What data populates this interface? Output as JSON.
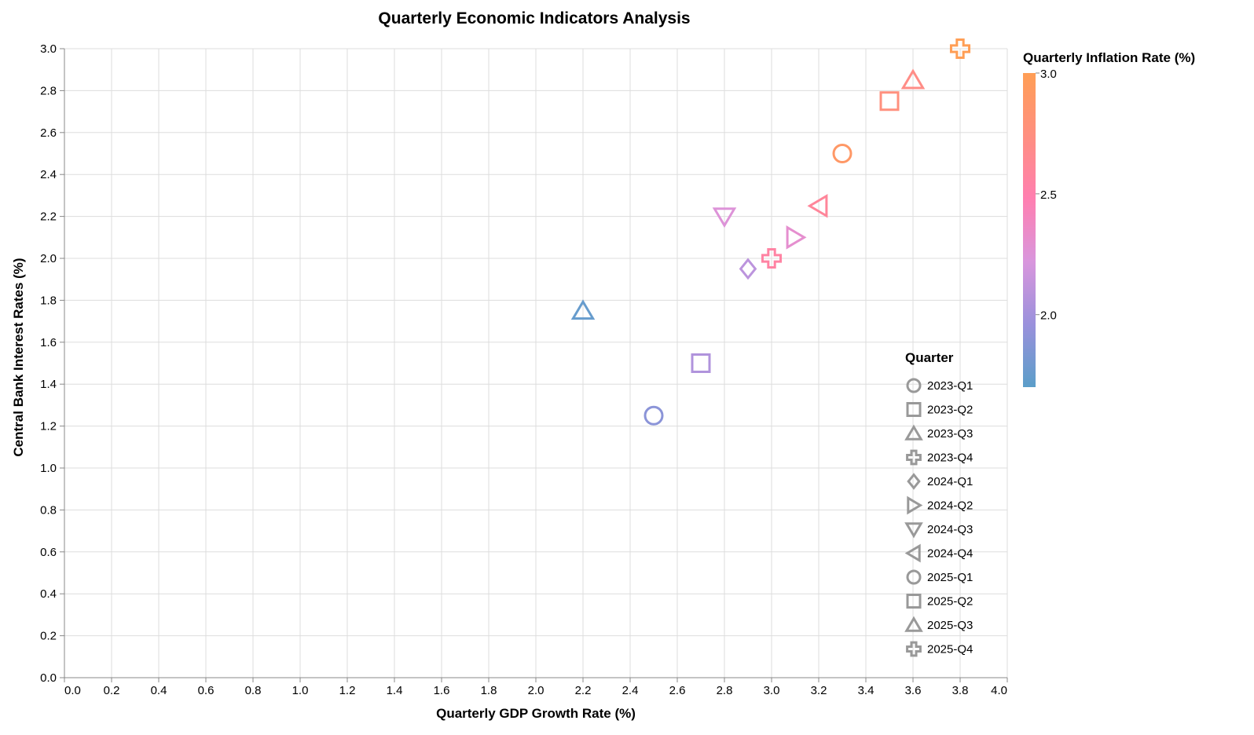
{
  "chart_data": {
    "type": "scatter",
    "title": "Quarterly Economic Indicators Analysis",
    "xlabel": "Quarterly GDP Growth Rate (%)",
    "ylabel": "Central Bank Interest Rates (%)",
    "xlim": [
      0,
      4
    ],
    "ylim": [
      0,
      3
    ],
    "x_ticks": [
      "0.0",
      "0.2",
      "0.4",
      "0.6",
      "0.8",
      "1.0",
      "1.2",
      "1.4",
      "1.6",
      "1.8",
      "2.0",
      "2.2",
      "2.4",
      "2.6",
      "2.8",
      "3.0",
      "3.2",
      "3.4",
      "3.6",
      "3.8",
      "4.0"
    ],
    "y_ticks": [
      "0.0",
      "0.2",
      "0.4",
      "0.6",
      "0.8",
      "1.0",
      "1.2",
      "1.4",
      "1.6",
      "1.8",
      "2.0",
      "2.2",
      "2.4",
      "2.6",
      "2.8",
      "3.0"
    ],
    "grid": true,
    "color_legend": {
      "title": "Quarterly Inflation Rate (%)",
      "domain": [
        1.7,
        3.0
      ],
      "ticks": [
        "2.0",
        "2.5",
        "3.0"
      ],
      "stops": [
        "#5b9ec9",
        "#9a91dc",
        "#d996dd",
        "#ff7fb0",
        "#ff8f80",
        "#ff9e55"
      ]
    },
    "shape_legend": {
      "title": "Quarter",
      "entries": [
        {
          "label": "2023-Q1",
          "shape": "circle"
        },
        {
          "label": "2023-Q2",
          "shape": "square"
        },
        {
          "label": "2023-Q3",
          "shape": "triangle-up"
        },
        {
          "label": "2023-Q4",
          "shape": "cross"
        },
        {
          "label": "2024-Q1",
          "shape": "diamond"
        },
        {
          "label": "2024-Q2",
          "shape": "triangle-right"
        },
        {
          "label": "2024-Q3",
          "shape": "triangle-down"
        },
        {
          "label": "2024-Q4",
          "shape": "triangle-left"
        },
        {
          "label": "2025-Q1",
          "shape": "circle"
        },
        {
          "label": "2025-Q2",
          "shape": "square"
        },
        {
          "label": "2025-Q3",
          "shape": "triangle-up"
        },
        {
          "label": "2025-Q4",
          "shape": "cross"
        }
      ]
    },
    "points": [
      {
        "quarter": "2023-Q1",
        "gdp": 2.5,
        "interest": 1.25,
        "inflation": 1.9
      },
      {
        "quarter": "2023-Q2",
        "gdp": 2.7,
        "interest": 1.5,
        "inflation": 2.05
      },
      {
        "quarter": "2023-Q3",
        "gdp": 2.2,
        "interest": 1.75,
        "inflation": 1.75
      },
      {
        "quarter": "2023-Q4",
        "gdp": 3.0,
        "interest": 2.0,
        "inflation": 2.55
      },
      {
        "quarter": "2024-Q1",
        "gdp": 2.9,
        "interest": 1.95,
        "inflation": 2.1
      },
      {
        "quarter": "2024-Q2",
        "gdp": 3.1,
        "interest": 2.1,
        "inflation": 2.3
      },
      {
        "quarter": "2024-Q3",
        "gdp": 2.8,
        "interest": 2.2,
        "inflation": 2.25
      },
      {
        "quarter": "2024-Q4",
        "gdp": 3.2,
        "interest": 2.25,
        "inflation": 2.6
      },
      {
        "quarter": "2025-Q1",
        "gdp": 3.3,
        "interest": 2.5,
        "inflation": 2.9
      },
      {
        "quarter": "2025-Q2",
        "gdp": 3.5,
        "interest": 2.75,
        "inflation": 2.75
      },
      {
        "quarter": "2025-Q3",
        "gdp": 3.6,
        "interest": 2.85,
        "inflation": 2.7
      },
      {
        "quarter": "2025-Q4",
        "gdp": 3.8,
        "interest": 3.0,
        "inflation": 3.0
      }
    ]
  }
}
